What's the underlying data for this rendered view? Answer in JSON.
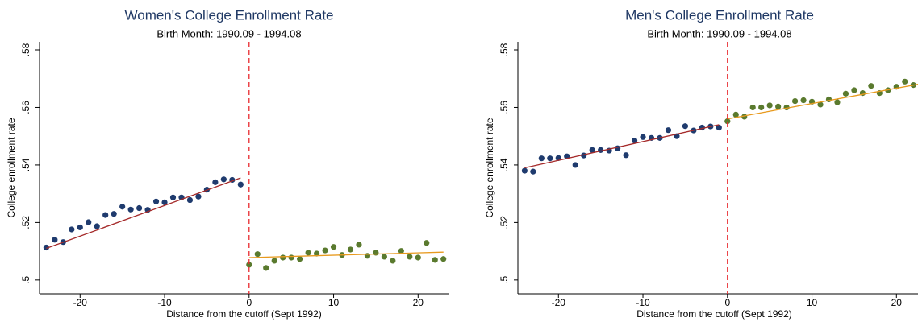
{
  "chart_data": [
    {
      "type": "scatter",
      "title": "Women's College Enrollment Rate",
      "subtitle": "Birth Month: 1990.09 - 1994.08",
      "xlabel": "Distance from the cutoff (Sept 1992)",
      "ylabel": "College enrollment rate",
      "xlim": [
        -24.8,
        23.6
      ],
      "ylim": [
        0.4952,
        0.5828
      ],
      "xticks": [
        -20,
        -10,
        0,
        10,
        20
      ],
      "yticks": [
        {
          "value": 0.5,
          "label": ".5"
        },
        {
          "value": 0.52,
          "label": ".52"
        },
        {
          "value": 0.54,
          "label": ".54"
        },
        {
          "value": 0.56,
          "label": ".56"
        },
        {
          "value": 0.58,
          "label": ".58"
        }
      ],
      "cutoff": 0,
      "cutoff_color": "#e8292f",
      "series": [
        {
          "type": "scatter",
          "color": "#1f3b6e",
          "x": [
            -24,
            -23,
            -22,
            -21,
            -20,
            -19,
            -18,
            -17,
            -16,
            -15,
            -14,
            -13,
            -12,
            -11,
            -10,
            -9,
            -8,
            -7,
            -6,
            -5,
            -4,
            -3,
            -2,
            -1
          ],
          "values": [
            0.5113,
            0.514,
            0.5132,
            0.5176,
            0.5183,
            0.5201,
            0.5187,
            0.5226,
            0.523,
            0.5255,
            0.5245,
            0.525,
            0.5244,
            0.5273,
            0.527,
            0.5287,
            0.5287,
            0.5278,
            0.529,
            0.5314,
            0.534,
            0.535,
            0.5348,
            0.5332
          ]
        },
        {
          "type": "scatter",
          "color": "#5a7a2e",
          "x": [
            0,
            1,
            2,
            3,
            4,
            5,
            6,
            7,
            8,
            9,
            10,
            11,
            12,
            13,
            14,
            15,
            16,
            17,
            18,
            19,
            20,
            21,
            22,
            23
          ],
          "values": [
            0.5053,
            0.509,
            0.5042,
            0.5067,
            0.5078,
            0.5078,
            0.5073,
            0.5095,
            0.5092,
            0.5103,
            0.5115,
            0.5087,
            0.5106,
            0.5123,
            0.5084,
            0.5095,
            0.5081,
            0.5067,
            0.5101,
            0.5081,
            0.5078,
            0.5129,
            0.507,
            0.5073
          ]
        },
        {
          "type": "line",
          "color": "#a52a2a",
          "x": [
            -24,
            -1
          ],
          "values": [
            0.511,
            0.5355
          ]
        },
        {
          "type": "line",
          "color": "#e89a1e",
          "x": [
            0,
            23
          ],
          "values": [
            0.5078,
            0.5097
          ]
        }
      ]
    },
    {
      "type": "scatter",
      "title": "Men's College Enrollment Rate",
      "subtitle": "Birth Month: 1990.09 - 1994.08",
      "xlabel": "Distance from the cutoff (Sept 1992)",
      "ylabel": "College enrollment rate",
      "xlim": [
        -24.8,
        23.6
      ],
      "ylim": [
        0.4952,
        0.5828
      ],
      "xticks": [
        -20,
        -10,
        0,
        10,
        20
      ],
      "yticks": [
        {
          "value": 0.5,
          "label": ".5"
        },
        {
          "value": 0.52,
          "label": ".52"
        },
        {
          "value": 0.54,
          "label": ".54"
        },
        {
          "value": 0.56,
          "label": ".56"
        },
        {
          "value": 0.58,
          "label": ".58"
        }
      ],
      "cutoff": 0,
      "cutoff_color": "#e8292f",
      "series": [
        {
          "type": "scatter",
          "color": "#1f3b6e",
          "x": [
            -24,
            -23,
            -22,
            -21,
            -20,
            -19,
            -18,
            -17,
            -16,
            -15,
            -14,
            -13,
            -12,
            -11,
            -10,
            -9,
            -8,
            -7,
            -6,
            -5,
            -4,
            -3,
            -2,
            -1
          ],
          "values": [
            0.538,
            0.5377,
            0.5423,
            0.5423,
            0.5424,
            0.543,
            0.54,
            0.5433,
            0.5452,
            0.5452,
            0.545,
            0.5458,
            0.5434,
            0.5485,
            0.5497,
            0.5494,
            0.5494,
            0.5521,
            0.55,
            0.5535,
            0.552,
            0.553,
            0.5534,
            0.553
          ]
        },
        {
          "type": "scatter",
          "color": "#5a7a2e",
          "x": [
            0,
            1,
            2,
            3,
            4,
            5,
            6,
            7,
            8,
            9,
            10,
            11,
            12,
            13,
            14,
            15,
            16,
            17,
            18,
            19,
            20,
            21,
            22,
            23
          ],
          "values": [
            0.5552,
            0.5575,
            0.5568,
            0.56,
            0.56,
            0.5607,
            0.5603,
            0.56,
            0.5622,
            0.5625,
            0.562,
            0.561,
            0.5628,
            0.5618,
            0.5648,
            0.566,
            0.565,
            0.5675,
            0.565,
            0.566,
            0.5672,
            0.569,
            0.5678,
            0.5665
          ]
        },
        {
          "type": "line",
          "color": "#a52a2a",
          "x": [
            -24,
            -1
          ],
          "values": [
            0.539,
            0.554
          ]
        },
        {
          "type": "line",
          "color": "#e89a1e",
          "x": [
            0,
            23
          ],
          "values": [
            0.556,
            0.5683
          ]
        }
      ]
    }
  ]
}
